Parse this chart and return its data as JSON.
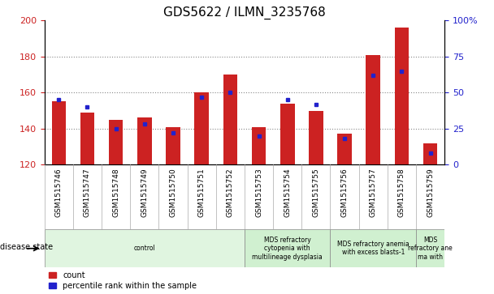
{
  "title": "GDS5622 / ILMN_3235768",
  "samples": [
    "GSM1515746",
    "GSM1515747",
    "GSM1515748",
    "GSM1515749",
    "GSM1515750",
    "GSM1515751",
    "GSM1515752",
    "GSM1515753",
    "GSM1515754",
    "GSM1515755",
    "GSM1515756",
    "GSM1515757",
    "GSM1515758",
    "GSM1515759"
  ],
  "counts": [
    155,
    149,
    145,
    146,
    141,
    160,
    170,
    141,
    154,
    150,
    137,
    181,
    196,
    132
  ],
  "percentiles": [
    45,
    40,
    25,
    28,
    22,
    47,
    50,
    20,
    45,
    42,
    18,
    62,
    65,
    8
  ],
  "ylim_left": [
    120,
    200
  ],
  "ylim_right": [
    0,
    100
  ],
  "yticks_left": [
    120,
    140,
    160,
    180,
    200
  ],
  "yticks_right": [
    0,
    25,
    50,
    75,
    100
  ],
  "yticklabels_right": [
    "0",
    "25",
    "50",
    "75",
    "100%"
  ],
  "bar_color": "#cc2222",
  "blue_color": "#2222cc",
  "grid_color": "#888888",
  "bar_width": 0.5,
  "disease_groups": [
    {
      "label": "control",
      "start": 0,
      "end": 7,
      "color": "#e0f5e0"
    },
    {
      "label": "MDS refractory\ncytopenia with\nmultilineage dysplasia",
      "start": 7,
      "end": 10,
      "color": "#d0f0d0"
    },
    {
      "label": "MDS refractory anemia\nwith excess blasts-1",
      "start": 10,
      "end": 13,
      "color": "#d0f0d0"
    },
    {
      "label": "MDS\nrefractory ane\nma with",
      "start": 13,
      "end": 14,
      "color": "#d0f0d0"
    }
  ],
  "disease_state_label": "disease state",
  "legend_count": "count",
  "legend_pct": "percentile rank within the sample",
  "title_fontsize": 11,
  "tick_fontsize": 8,
  "label_fontsize": 7,
  "sample_fontsize": 6.5
}
